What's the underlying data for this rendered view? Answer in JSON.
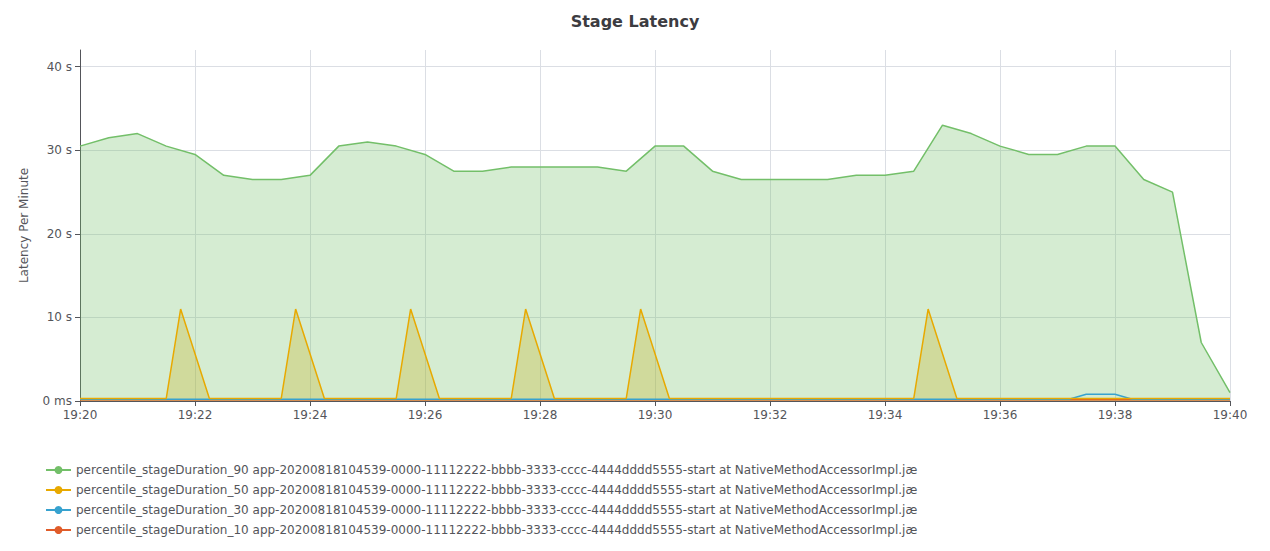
{
  "chart_data": {
    "type": "line",
    "title": "Stage Latency",
    "ylabel": "Latency Per Minute",
    "xlim": [
      0,
      20
    ],
    "xticks": [
      {
        "value": 0,
        "label": "19:20"
      },
      {
        "value": 2,
        "label": "19:22"
      },
      {
        "value": 4,
        "label": "19:24"
      },
      {
        "value": 6,
        "label": "19:26"
      },
      {
        "value": 8,
        "label": "19:28"
      },
      {
        "value": 10,
        "label": "19:30"
      },
      {
        "value": 12,
        "label": "19:32"
      },
      {
        "value": 14,
        "label": "19:34"
      },
      {
        "value": 16,
        "label": "19:36"
      },
      {
        "value": 18,
        "label": "19:38"
      },
      {
        "value": 20,
        "label": "19:40"
      }
    ],
    "ylim": [
      0,
      42
    ],
    "yticks": [
      {
        "value": 0,
        "label": "0 ms"
      },
      {
        "value": 10,
        "label": "10 s"
      },
      {
        "value": 20,
        "label": "20 s"
      },
      {
        "value": 30,
        "label": "30 s"
      },
      {
        "value": 40,
        "label": "40 s"
      }
    ],
    "grid": true,
    "legend": "bottom",
    "series": [
      {
        "name": "percentile_stageDuration_90 app-20200818104539-0000-11112222-bbbb-3333-cccc-4444dddd5555-start at NativeMethodAccessorImpl.jæ",
        "color": "#73bf69",
        "type": "area",
        "values": [
          [
            0,
            30.5
          ],
          [
            0.5,
            31.5
          ],
          [
            1.0,
            32.0
          ],
          [
            1.5,
            30.5
          ],
          [
            2.0,
            29.5
          ],
          [
            2.5,
            27.0
          ],
          [
            3.0,
            26.5
          ],
          [
            3.5,
            26.5
          ],
          [
            4.0,
            27.0
          ],
          [
            4.5,
            30.5
          ],
          [
            5.0,
            31.0
          ],
          [
            5.5,
            30.5
          ],
          [
            6.0,
            29.5
          ],
          [
            6.5,
            27.5
          ],
          [
            7.0,
            27.5
          ],
          [
            7.5,
            28.0
          ],
          [
            8.0,
            28.0
          ],
          [
            8.5,
            28.0
          ],
          [
            9.0,
            28.0
          ],
          [
            9.5,
            27.5
          ],
          [
            10.0,
            30.5
          ],
          [
            10.5,
            30.5
          ],
          [
            11.0,
            27.5
          ],
          [
            11.5,
            26.5
          ],
          [
            12.0,
            26.5
          ],
          [
            12.5,
            26.5
          ],
          [
            13.0,
            26.5
          ],
          [
            13.5,
            27.0
          ],
          [
            14.0,
            27.0
          ],
          [
            14.5,
            27.5
          ],
          [
            15.0,
            33.0
          ],
          [
            15.5,
            32.0
          ],
          [
            16.0,
            30.5
          ],
          [
            16.5,
            29.5
          ],
          [
            17.0,
            29.5
          ],
          [
            17.5,
            30.5
          ],
          [
            18.0,
            30.5
          ],
          [
            18.5,
            26.5
          ],
          [
            19.0,
            25.0
          ],
          [
            19.5,
            7.0
          ],
          [
            20.0,
            1.0
          ]
        ]
      },
      {
        "name": "percentile_stageDuration_50 app-20200818104539-0000-11112222-bbbb-3333-cccc-4444dddd5555-start at NativeMethodAccessorImpl.jæ",
        "color": "#e8a900",
        "type": "area",
        "values": [
          [
            0.0,
            0.3
          ],
          [
            1.5,
            0.3
          ],
          [
            1.5,
            0.3
          ],
          [
            1.75,
            11.0
          ],
          [
            2.25,
            0.3
          ],
          [
            3.5,
            0.3
          ],
          [
            3.75,
            11.0
          ],
          [
            4.25,
            0.3
          ],
          [
            5.5,
            0.3
          ],
          [
            5.75,
            11.0
          ],
          [
            6.25,
            0.3
          ],
          [
            7.5,
            0.3
          ],
          [
            7.75,
            11.0
          ],
          [
            8.25,
            0.3
          ],
          [
            9.5,
            0.3
          ],
          [
            9.75,
            11.0
          ],
          [
            10.25,
            0.3
          ],
          [
            14.5,
            0.3
          ],
          [
            14.75,
            11.0
          ],
          [
            15.25,
            0.3
          ],
          [
            20.0,
            0.3
          ]
        ]
      },
      {
        "name": "percentile_stageDuration_30 app-20200818104539-0000-11112222-bbbb-3333-cccc-4444dddd5555-start at NativeMethodAccessorImpl.jæ",
        "color": "#37a2cf",
        "type": "line",
        "values": [
          [
            0.0,
            0.2
          ],
          [
            17.2,
            0.2
          ],
          [
            17.5,
            0.8
          ],
          [
            18.0,
            0.8
          ],
          [
            18.3,
            0.2
          ],
          [
            20.0,
            0.2
          ]
        ]
      },
      {
        "name": "percentile_stageDuration_10 app-20200818104539-0000-11112222-bbbb-3333-cccc-4444dddd5555-start at NativeMethodAccessorImpl.jæ",
        "color": "#e05c2a",
        "type": "area",
        "values": [
          [
            0.0,
            0.15
          ],
          [
            20.0,
            0.15
          ]
        ]
      }
    ]
  }
}
